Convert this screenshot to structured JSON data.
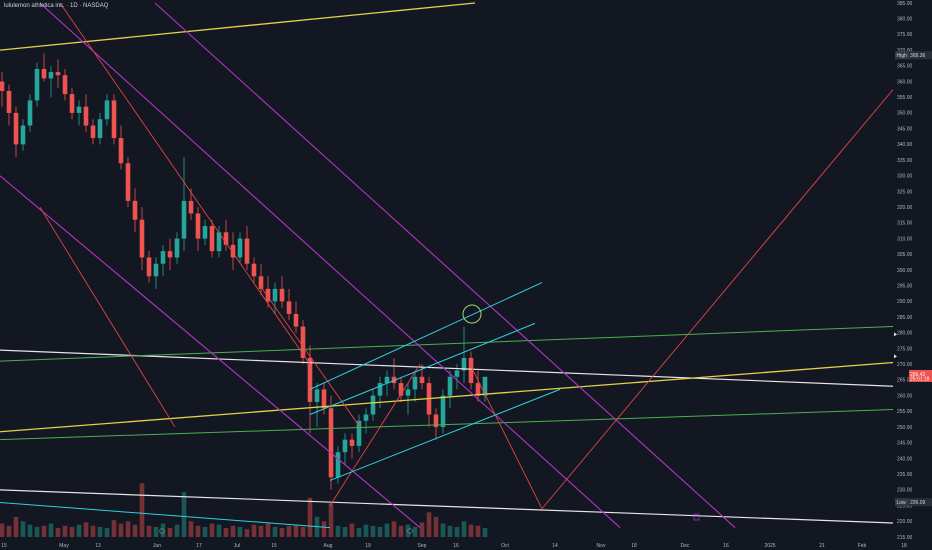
{
  "header": {
    "symbol_line": "lululemon athletica inc. · 1D · NASDAQ"
  },
  "chart_data": {
    "type": "candlestick",
    "title": "lululemon athletica inc. · 1D · NASDAQ",
    "ylim": [
      215,
      385
    ],
    "y_ticks": [
      215,
      220,
      225,
      230,
      235,
      240,
      245,
      250,
      255,
      260,
      265,
      270,
      275,
      280,
      285,
      290,
      295,
      300,
      305,
      310,
      315,
      320,
      325,
      330,
      335,
      340,
      345,
      350,
      355,
      360,
      365,
      370,
      375,
      380,
      385
    ],
    "x_ticks": [
      "15",
      "May",
      "13",
      "Jun",
      "17",
      "Jul",
      "15",
      "Aug",
      "19",
      "Sep",
      "16",
      "Oct",
      "14",
      "Nov",
      "18",
      "Dec",
      "16",
      "2025",
      "21",
      "Feb",
      "18"
    ],
    "high_label": "High",
    "high_value": "368.36",
    "low_label": "Low",
    "low_value": "226.09",
    "last_price": "266.42",
    "countdown": "25:01:18",
    "candles": [
      [
        360,
        363,
        352,
        357
      ],
      [
        357,
        359,
        346,
        350
      ],
      [
        350,
        352,
        336,
        340
      ],
      [
        340,
        348,
        338,
        346
      ],
      [
        346,
        356,
        344,
        354
      ],
      [
        354,
        366,
        352,
        364
      ],
      [
        364,
        369,
        360,
        361
      ],
      [
        361,
        365,
        355,
        363
      ],
      [
        363,
        367,
        358,
        362
      ],
      [
        362,
        364,
        354,
        356
      ],
      [
        356,
        358,
        348,
        350
      ],
      [
        350,
        354,
        346,
        352
      ],
      [
        352,
        356,
        344,
        346
      ],
      [
        346,
        348,
        340,
        342
      ],
      [
        342,
        350,
        340,
        348
      ],
      [
        348,
        356,
        346,
        354
      ],
      [
        354,
        356,
        340,
        342
      ],
      [
        342,
        346,
        332,
        334
      ],
      [
        334,
        336,
        320,
        322
      ],
      [
        322,
        326,
        312,
        316
      ],
      [
        316,
        320,
        300,
        304
      ],
      [
        304,
        306,
        296,
        298
      ],
      [
        298,
        304,
        294,
        302
      ],
      [
        302,
        308,
        298,
        306
      ],
      [
        306,
        310,
        300,
        304
      ],
      [
        304,
        312,
        302,
        310
      ],
      [
        310,
        336,
        306,
        322
      ],
      [
        322,
        326,
        316,
        318
      ],
      [
        318,
        320,
        306,
        310
      ],
      [
        310,
        316,
        308,
        314
      ],
      [
        314,
        316,
        304,
        306
      ],
      [
        306,
        314,
        304,
        312
      ],
      [
        312,
        316,
        306,
        308
      ],
      [
        308,
        312,
        300,
        304
      ],
      [
        304,
        312,
        302,
        310
      ],
      [
        310,
        314,
        300,
        302
      ],
      [
        302,
        304,
        296,
        298
      ],
      [
        298,
        302,
        292,
        294
      ],
      [
        294,
        298,
        288,
        290
      ],
      [
        290,
        296,
        286,
        294
      ],
      [
        294,
        298,
        288,
        290
      ],
      [
        290,
        294,
        284,
        286
      ],
      [
        286,
        290,
        280,
        282
      ],
      [
        282,
        284,
        270,
        272
      ],
      [
        272,
        276,
        248,
        258
      ],
      [
        258,
        264,
        250,
        262
      ],
      [
        262,
        264,
        254,
        256
      ],
      [
        256,
        260,
        230,
        234
      ],
      [
        234,
        244,
        232,
        242
      ],
      [
        242,
        248,
        238,
        246
      ],
      [
        246,
        248,
        240,
        244
      ],
      [
        244,
        254,
        242,
        252
      ],
      [
        252,
        256,
        248,
        254
      ],
      [
        254,
        262,
        252,
        260
      ],
      [
        260,
        266,
        256,
        264
      ],
      [
        264,
        268,
        260,
        266
      ],
      [
        266,
        272,
        262,
        264
      ],
      [
        264,
        266,
        258,
        260
      ],
      [
        260,
        264,
        254,
        262
      ],
      [
        262,
        268,
        258,
        266
      ],
      [
        266,
        270,
        262,
        264
      ],
      [
        264,
        266,
        250,
        254
      ],
      [
        254,
        256,
        246,
        250
      ],
      [
        250,
        262,
        248,
        260
      ],
      [
        260,
        268,
        256,
        266
      ],
      [
        266,
        270,
        262,
        268
      ],
      [
        268,
        282,
        264,
        272
      ],
      [
        272,
        274,
        262,
        264
      ],
      [
        264,
        268,
        258,
        260
      ],
      [
        260,
        266,
        258,
        266
      ]
    ],
    "volume_scale": [
      0,
      100
    ],
    "volumes": [
      12,
      10,
      18,
      14,
      11,
      9,
      10,
      12,
      8,
      10,
      9,
      11,
      13,
      10,
      9,
      8,
      15,
      12,
      14,
      11,
      48,
      10,
      9,
      12,
      8,
      11,
      40,
      14,
      10,
      9,
      12,
      11,
      8,
      10,
      9,
      7,
      11,
      10,
      12,
      9,
      8,
      10,
      11,
      9,
      35,
      18,
      14,
      30,
      10,
      9,
      12,
      8,
      11,
      10,
      9,
      12,
      14,
      10,
      11,
      9,
      13,
      22,
      18,
      12,
      10,
      9,
      14,
      11,
      10,
      8
    ],
    "drawings": {
      "white_lines": [
        [
          0,
          274.5,
          932,
          262.5
        ],
        [
          0,
          230,
          932,
          219
        ]
      ],
      "yellow_lines": [
        [
          0,
          370,
          475,
          385
        ],
        [
          0,
          248.5,
          932,
          271.5
        ]
      ],
      "green_lines": [
        [
          0,
          246,
          932,
          256
        ],
        [
          0,
          271,
          932,
          282.5
        ]
      ],
      "purple_lines": [
        [
          155,
          385,
          735,
          218
        ],
        [
          40,
          385,
          620,
          218
        ],
        [
          0,
          330,
          420,
          218
        ]
      ],
      "red_lines": [
        [
          60,
          385,
          310,
          270
        ],
        [
          40,
          320,
          175,
          250
        ],
        [
          260,
          295,
          360,
          250
        ],
        [
          330,
          225,
          420,
          270
        ],
        [
          470,
          270,
          542,
          224
        ],
        [
          542,
          224,
          905,
          362
        ]
      ],
      "cyan_lines": [
        [
          310,
          262,
          542,
          296
        ],
        [
          310,
          254,
          535,
          283
        ],
        [
          330,
          233,
          560,
          262
        ],
        [
          0,
          226,
          330,
          218
        ]
      ],
      "circle": [
        472,
        286
      ]
    }
  }
}
